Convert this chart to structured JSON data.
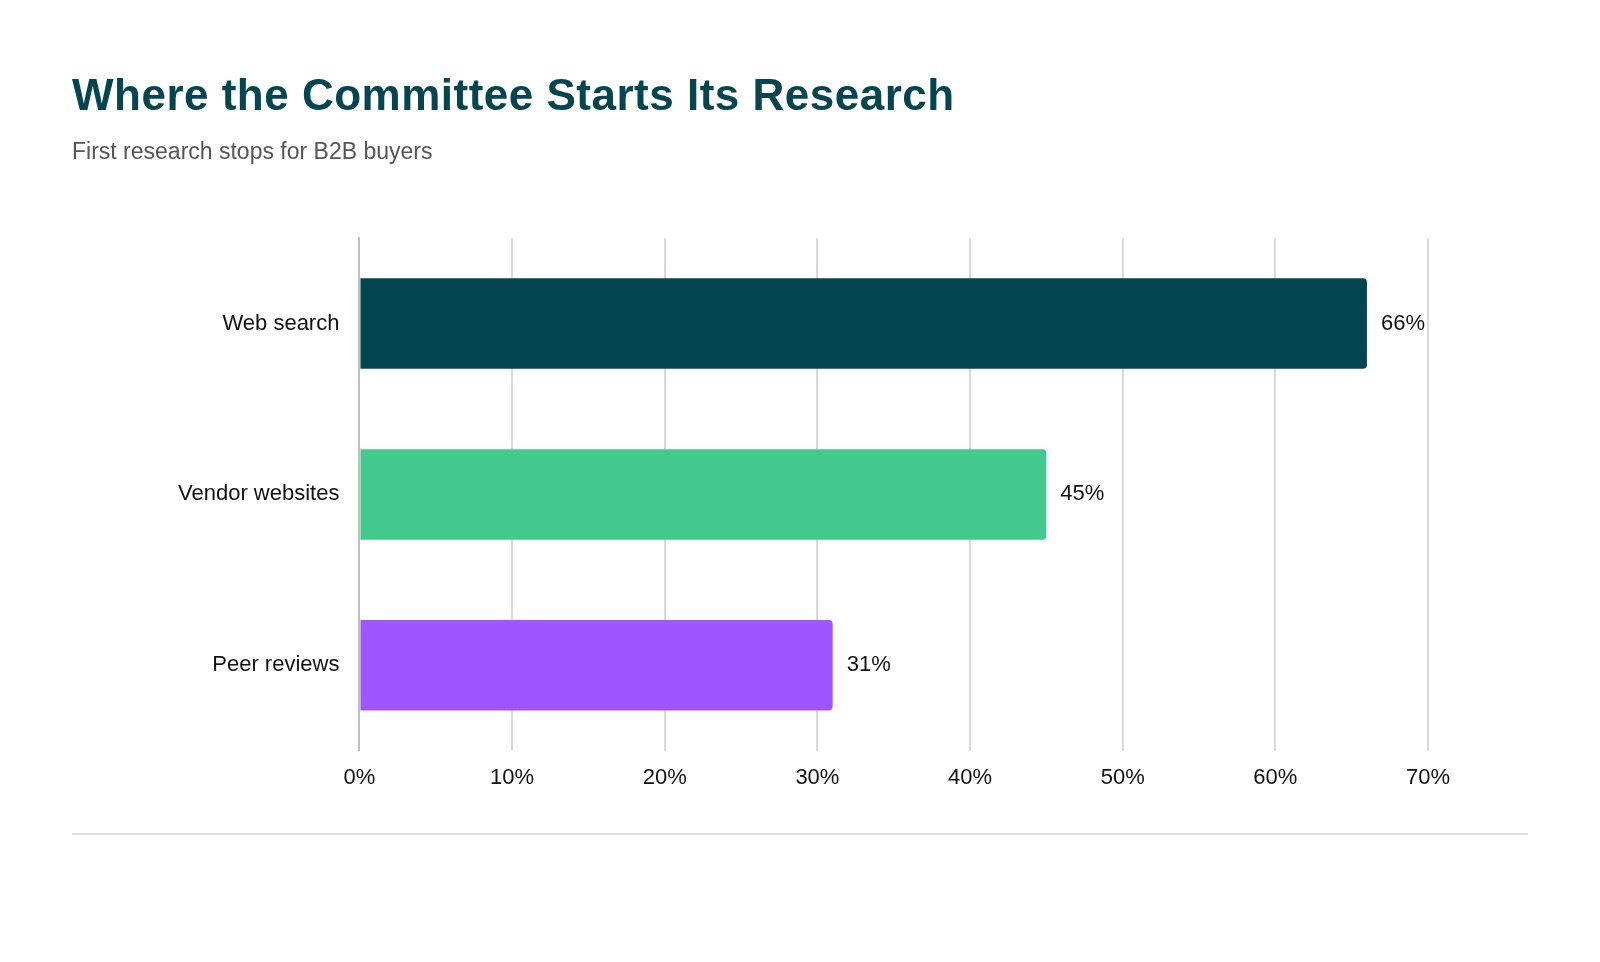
{
  "chart_data": {
    "type": "bar",
    "orientation": "horizontal",
    "title": "Where the Committee Starts Its Research",
    "subtitle": "First research stops for B2B buyers",
    "categories": [
      "Web search",
      "Vendor websites",
      "Peer reviews"
    ],
    "values": [
      66,
      45,
      31
    ],
    "colors": [
      "#04454f",
      "#43c98f",
      "#9f55ff"
    ],
    "value_labels": [
      "66%",
      "45%",
      "31%"
    ],
    "xlim": [
      0,
      70
    ],
    "xticks": [
      {
        "value": 0,
        "label": "0%"
      },
      {
        "value": 10,
        "label": "10%"
      },
      {
        "value": 20,
        "label": "20%"
      },
      {
        "value": 30,
        "label": "30%"
      },
      {
        "value": 40,
        "label": "40%"
      },
      {
        "value": 50,
        "label": "50%"
      },
      {
        "value": 60,
        "label": "60%"
      },
      {
        "value": 70,
        "label": "70%"
      }
    ],
    "grid": "x"
  }
}
